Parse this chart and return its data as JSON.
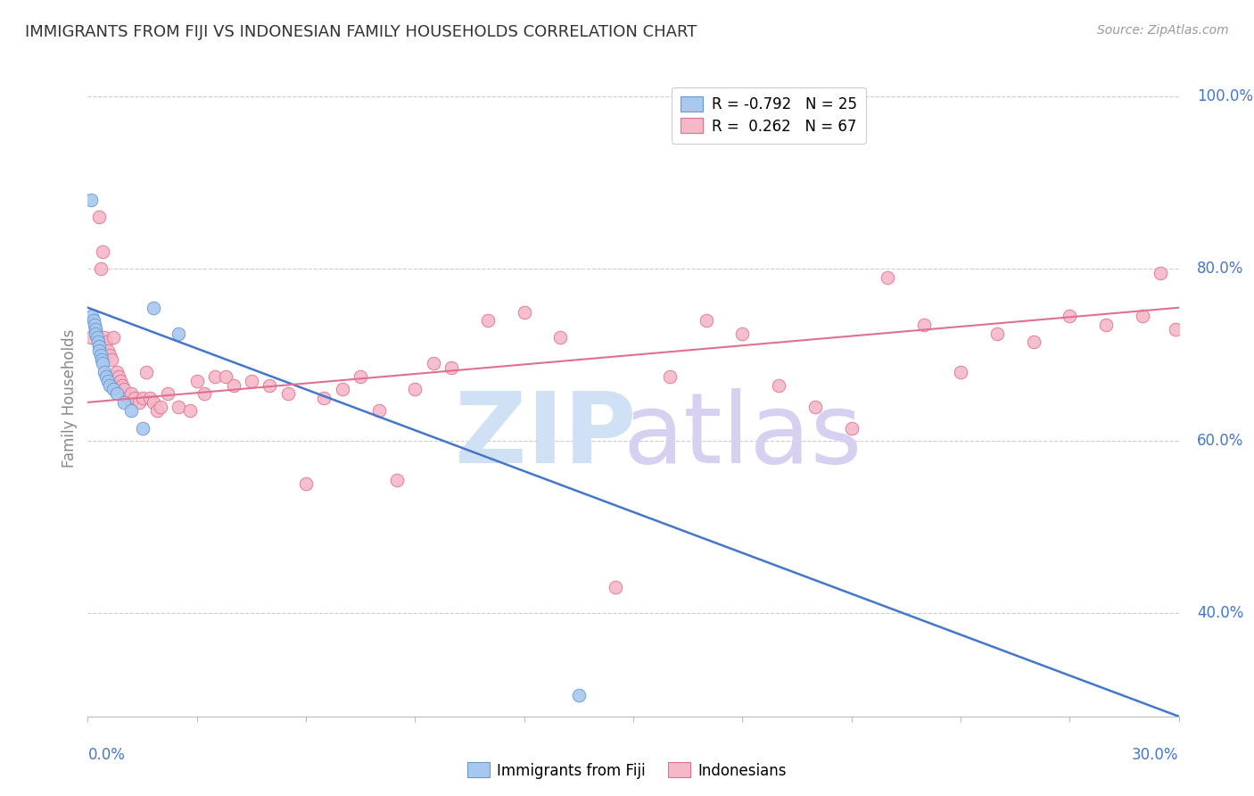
{
  "title": "IMMIGRANTS FROM FIJI VS INDONESIAN FAMILY HOUSEHOLDS CORRELATION CHART",
  "source": "Source: ZipAtlas.com",
  "ylabel": "Family Households",
  "x_min": 0.0,
  "x_max": 30.0,
  "y_min": 28.0,
  "y_max": 102.0,
  "fiji_R": -0.792,
  "fiji_N": 25,
  "indonesian_R": 0.262,
  "indonesian_N": 67,
  "fiji_color": "#A8C8F0",
  "fiji_edge_color": "#6699CC",
  "indonesian_color": "#F5B8C8",
  "indonesian_edge_color": "#E07090",
  "fiji_trend_color": "#4477CC",
  "indonesian_trend_color": "#E07090",
  "watermark_zip_color": "#D0E0F5",
  "watermark_atlas_color": "#D8D0F0",
  "grid_color": "#CCCCCC",
  "axis_label_color": "#4477CC",
  "title_color": "#333333",
  "right_yticks": [
    100.0,
    80.0,
    60.0,
    40.0
  ],
  "fiji_trend_x0": 0.0,
  "fiji_trend_y0": 75.5,
  "fiji_trend_x1": 30.0,
  "fiji_trend_y1": 28.0,
  "indonesian_trend_x0": 0.0,
  "indonesian_trend_y0": 64.5,
  "indonesian_trend_x1": 30.0,
  "indonesian_trend_y1": 75.5,
  "fiji_points_x": [
    0.08,
    0.12,
    0.15,
    0.18,
    0.2,
    0.22,
    0.25,
    0.28,
    0.3,
    0.32,
    0.35,
    0.38,
    0.4,
    0.45,
    0.5,
    0.55,
    0.6,
    0.7,
    0.8,
    1.0,
    1.2,
    1.5,
    1.8,
    2.5,
    13.5
  ],
  "fiji_points_y": [
    88.0,
    74.5,
    74.0,
    73.5,
    73.0,
    72.5,
    72.0,
    71.5,
    71.0,
    70.5,
    70.0,
    69.5,
    69.0,
    68.0,
    67.5,
    67.0,
    66.5,
    66.0,
    65.5,
    64.5,
    63.5,
    61.5,
    75.5,
    72.5,
    30.5
  ],
  "indonesian_points_x": [
    0.1,
    0.2,
    0.3,
    0.35,
    0.4,
    0.45,
    0.5,
    0.55,
    0.6,
    0.65,
    0.7,
    0.75,
    0.8,
    0.85,
    0.9,
    0.95,
    1.0,
    1.1,
    1.2,
    1.3,
    1.4,
    1.5,
    1.6,
    1.7,
    1.8,
    1.9,
    2.0,
    2.2,
    2.5,
    2.8,
    3.0,
    3.2,
    3.5,
    3.8,
    4.0,
    4.5,
    5.0,
    5.5,
    6.0,
    6.5,
    7.0,
    7.5,
    8.0,
    8.5,
    9.0,
    9.5,
    10.0,
    11.0,
    12.0,
    13.0,
    14.5,
    16.0,
    17.0,
    18.0,
    19.0,
    20.0,
    21.0,
    22.0,
    23.0,
    24.0,
    25.0,
    26.0,
    27.0,
    28.0,
    29.0,
    29.5,
    29.9
  ],
  "indonesian_points_y": [
    72.0,
    73.0,
    86.0,
    80.0,
    82.0,
    72.0,
    71.5,
    70.5,
    70.0,
    69.5,
    72.0,
    67.5,
    68.0,
    67.5,
    67.0,
    66.5,
    66.0,
    65.0,
    65.5,
    65.0,
    64.5,
    65.0,
    68.0,
    65.0,
    64.5,
    63.5,
    64.0,
    65.5,
    64.0,
    63.5,
    67.0,
    65.5,
    67.5,
    67.5,
    66.5,
    67.0,
    66.5,
    65.5,
    55.0,
    65.0,
    66.0,
    67.5,
    63.5,
    55.5,
    66.0,
    69.0,
    68.5,
    74.0,
    75.0,
    72.0,
    43.0,
    67.5,
    74.0,
    72.5,
    66.5,
    64.0,
    61.5,
    79.0,
    73.5,
    68.0,
    72.5,
    71.5,
    74.5,
    73.5,
    74.5,
    79.5,
    73.0
  ]
}
